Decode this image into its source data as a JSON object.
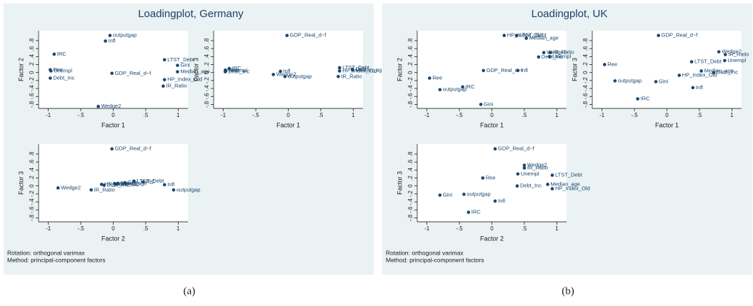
{
  "chart_data": [
    {
      "type": "loadingplot",
      "title": "Loadingplot, Germany",
      "color": "#1a476f",
      "variables": [
        "Wedge2",
        "Ree",
        "IRC",
        "Infl",
        "outputgap",
        "GDP_Real_d~f",
        "Gini",
        "LTST_Debt",
        "Unempl",
        "Debt_Inc",
        "Median_age",
        "HP_Index_Old",
        "IR_Ratio"
      ],
      "factors": [
        {
          "name": "Factor 1",
          "values": [
            -0.23,
            -0.97,
            -0.91,
            -0.12,
            -0.05,
            -0.02,
            0.99,
            0.79,
            -0.96,
            -0.97,
            0.99,
            0.79,
            0.77
          ]
        },
        {
          "name": "Factor 2",
          "values": [
            -0.85,
            0.07,
            0.46,
            0.79,
            0.93,
            -0.02,
            0.18,
            0.32,
            0.04,
            -0.14,
            0.02,
            -0.18,
            -0.34
          ]
        },
        {
          "name": "Factor 3",
          "values": [
            -0.05,
            0.06,
            0.1,
            0.03,
            -0.1,
            0.93,
            0.08,
            0.12,
            0.05,
            0.02,
            0.06,
            0.04,
            -0.1
          ]
        }
      ],
      "xlim": [
        -1.15,
        1.15
      ],
      "xticks": [
        -1,
        {
          "value": -0.5,
          "label": "-.5"
        },
        0,
        {
          "value": 0.5,
          "label": ".5"
        },
        1
      ],
      "ylim": [
        -0.9,
        1.05
      ],
      "yticks": [
        {
          "value": -0.8,
          "label": "-.8"
        },
        {
          "value": -0.6,
          "label": "-.6"
        },
        {
          "value": -0.4,
          "label": "-.4"
        },
        {
          "value": -0.2,
          "label": "-.2"
        },
        0,
        {
          "value": 0.2,
          "label": ".2"
        },
        {
          "value": 0.4,
          "label": ".4"
        },
        {
          "value": 0.6,
          "label": ".6"
        },
        {
          "value": 0.8,
          "label": ".8"
        }
      ],
      "notes": [
        "Rotation: orthogonal varimax",
        "Method: principal-component factors"
      ],
      "caption": "(a)"
    },
    {
      "type": "loadingplot",
      "title": "Loadingplot, UK",
      "color": "#1a476f",
      "variables": [
        "HP_Index_Old",
        "LTST_Debt",
        "Median_age",
        "Wedge2",
        "IR_Ratio",
        "Unempl",
        "Debt_Inc",
        "Infl",
        "Ree",
        "GDP_Real_d~f",
        "outputgap",
        "IRC",
        "Gini"
      ],
      "factors": [
        {
          "name": "Factor 1",
          "values": [
            0.19,
            0.38,
            0.53,
            0.8,
            0.9,
            0.89,
            0.72,
            0.4,
            -0.96,
            -0.13,
            -0.8,
            -0.45,
            -0.17
          ]
        },
        {
          "name": "Factor 2",
          "values": [
            0.93,
            0.93,
            0.86,
            0.5,
            0.5,
            0.4,
            0.39,
            0.05,
            -0.14,
            0.05,
            -0.43,
            -0.36,
            -0.8
          ]
        },
        {
          "name": "Factor 3",
          "values": [
            -0.07,
            0.27,
            0.04,
            0.52,
            0.45,
            0.3,
            0.0,
            -0.38,
            0.2,
            0.93,
            -0.21,
            -0.66,
            -0.23
          ]
        }
      ],
      "xlim": [
        -1.15,
        1.15
      ],
      "xticks": [
        -1,
        {
          "value": -0.5,
          "label": "-.5"
        },
        0,
        {
          "value": 0.5,
          "label": ".5"
        },
        1
      ],
      "ylim": [
        -0.9,
        1.05
      ],
      "yticks": [
        {
          "value": -0.8,
          "label": "-.8"
        },
        {
          "value": -0.6,
          "label": "-.6"
        },
        {
          "value": -0.4,
          "label": "-.4"
        },
        {
          "value": -0.2,
          "label": "-.2"
        },
        0,
        {
          "value": 0.2,
          "label": ".2"
        },
        {
          "value": 0.4,
          "label": ".4"
        },
        {
          "value": 0.6,
          "label": ".6"
        },
        {
          "value": 0.8,
          "label": ".8"
        }
      ],
      "notes": [
        "Rotation: orthogonal varimax",
        "Method: principal-component factors"
      ],
      "caption": "(b)"
    }
  ]
}
